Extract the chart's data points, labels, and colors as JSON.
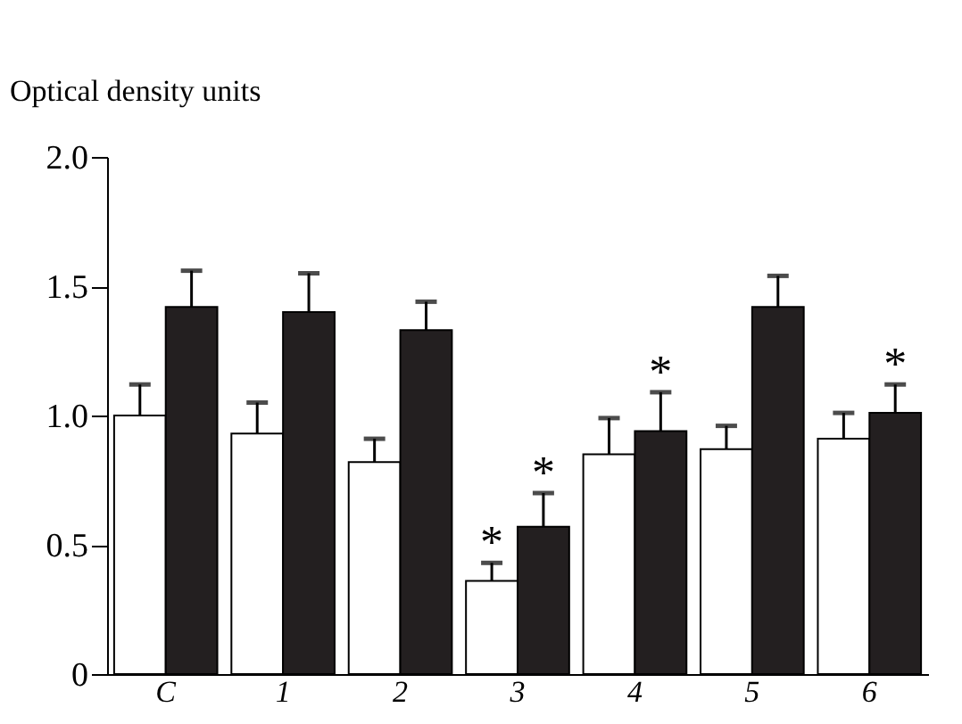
{
  "chart_data": {
    "type": "bar",
    "ylabel": "Optical density units",
    "categories": [
      "C",
      "1",
      "2",
      "3",
      "4",
      "5",
      "6"
    ],
    "series": [
      {
        "color": "#ffffff",
        "values": [
          1.0,
          0.93,
          0.82,
          0.36,
          0.85,
          0.87,
          0.91
        ],
        "errors": [
          [
            1.0,
            1.12
          ],
          [
            0.93,
            1.05
          ],
          [
            0.82,
            0.91
          ],
          [
            0.36,
            0.43
          ],
          [
            0.85,
            0.99
          ],
          [
            0.87,
            0.96
          ],
          [
            0.91,
            1.01
          ]
        ]
      },
      {
        "color": "#231f20",
        "values": [
          1.42,
          1.4,
          1.33,
          0.57,
          0.94,
          1.42,
          1.01
        ],
        "errors": [
          [
            1.42,
            1.56
          ],
          [
            1.4,
            1.55
          ],
          [
            1.33,
            1.44
          ],
          [
            0.57,
            0.7
          ],
          [
            0.94,
            1.09
          ],
          [
            1.42,
            1.54
          ],
          [
            1.01,
            1.12
          ]
        ]
      }
    ],
    "annotations": [
      {
        "text": "*",
        "x": "3",
        "y": 0.36
      },
      {
        "text": "*",
        "x": "3",
        "y": 0.57
      },
      {
        "text": "*",
        "x": "4",
        "y": 0.94
      },
      {
        "text": "*",
        "x": "6",
        "y": 1.01
      }
    ],
    "ylim": [
      0,
      2.0
    ],
    "yticks": [
      0,
      {
        "value": 0.5,
        "label": "0.5"
      },
      {
        "value": 1.0,
        "label": "1.0"
      },
      {
        "value": 1.5,
        "label": "1.5"
      },
      {
        "value": 2.0,
        "label": "2.0"
      }
    ],
    "grid": false,
    "legend": false
  }
}
